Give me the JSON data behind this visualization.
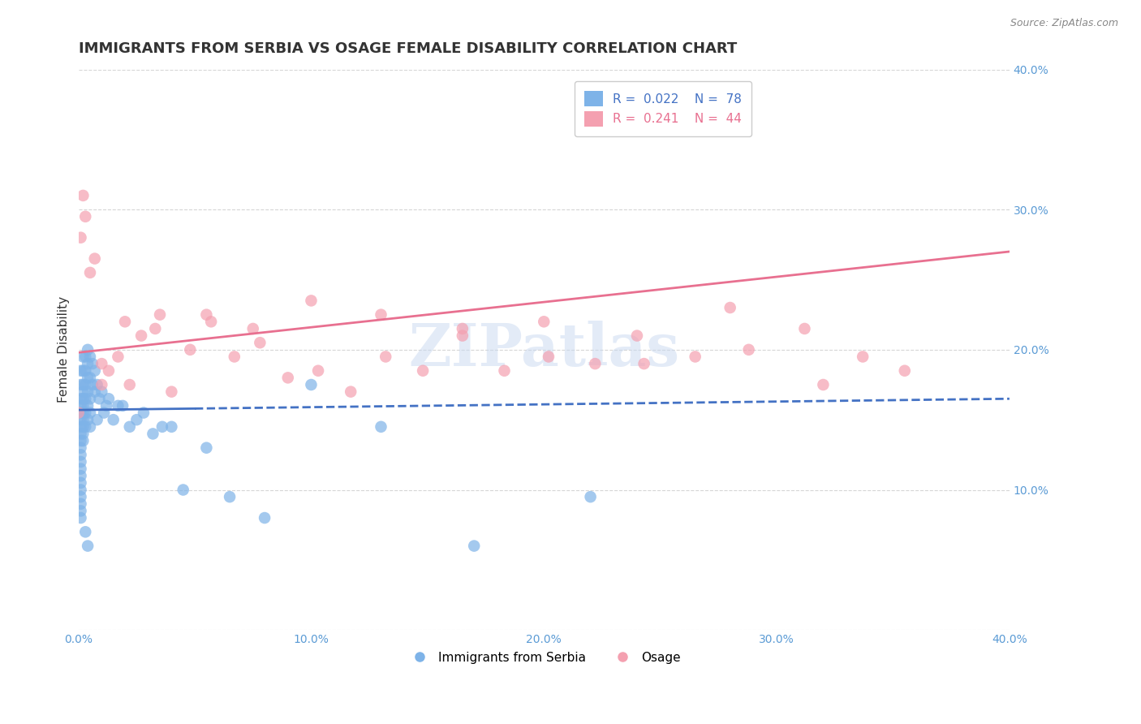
{
  "title": "IMMIGRANTS FROM SERBIA VS OSAGE FEMALE DISABILITY CORRELATION CHART",
  "source": "Source: ZipAtlas.com",
  "ylabel": "Female Disability",
  "xlim": [
    0.0,
    0.4
  ],
  "ylim": [
    0.0,
    0.4
  ],
  "xticks": [
    0.0,
    0.1,
    0.2,
    0.3,
    0.4
  ],
  "yticks": [
    0.0,
    0.1,
    0.2,
    0.3,
    0.4
  ],
  "xtick_labels": [
    "0.0%",
    "10.0%",
    "20.0%",
    "30.0%",
    "40.0%"
  ],
  "ytick_labels_right": [
    "",
    "10.0%",
    "20.0%",
    "30.0%",
    "40.0%"
  ],
  "blue_R": 0.022,
  "blue_N": 78,
  "pink_R": 0.241,
  "pink_N": 44,
  "blue_color": "#7EB3E8",
  "pink_color": "#F4A0B0",
  "blue_line_color": "#4472C4",
  "pink_line_color": "#E87090",
  "legend_label_blue": "Immigrants from Serbia",
  "legend_label_pink": "Osage",
  "watermark": "ZIPatlas",
  "blue_data_xlim": 0.05,
  "blue_scatter_x": [
    0.001,
    0.001,
    0.001,
    0.001,
    0.001,
    0.001,
    0.001,
    0.001,
    0.001,
    0.001,
    0.001,
    0.001,
    0.001,
    0.001,
    0.001,
    0.001,
    0.001,
    0.001,
    0.001,
    0.001,
    0.002,
    0.002,
    0.002,
    0.002,
    0.002,
    0.002,
    0.002,
    0.002,
    0.002,
    0.002,
    0.002,
    0.003,
    0.003,
    0.003,
    0.003,
    0.003,
    0.003,
    0.003,
    0.004,
    0.004,
    0.004,
    0.004,
    0.004,
    0.004,
    0.004,
    0.005,
    0.005,
    0.005,
    0.005,
    0.005,
    0.006,
    0.006,
    0.007,
    0.007,
    0.008,
    0.008,
    0.009,
    0.01,
    0.011,
    0.012,
    0.013,
    0.015,
    0.017,
    0.019,
    0.022,
    0.025,
    0.028,
    0.032,
    0.036,
    0.04,
    0.045,
    0.055,
    0.065,
    0.08,
    0.1,
    0.13,
    0.17,
    0.22
  ],
  "blue_scatter_y": [
    0.185,
    0.175,
    0.165,
    0.16,
    0.155,
    0.15,
    0.145,
    0.14,
    0.135,
    0.13,
    0.125,
    0.12,
    0.115,
    0.11,
    0.105,
    0.1,
    0.095,
    0.09,
    0.085,
    0.08,
    0.195,
    0.185,
    0.175,
    0.17,
    0.165,
    0.16,
    0.155,
    0.15,
    0.145,
    0.14,
    0.135,
    0.195,
    0.185,
    0.175,
    0.165,
    0.155,
    0.145,
    0.07,
    0.2,
    0.19,
    0.18,
    0.17,
    0.16,
    0.15,
    0.06,
    0.195,
    0.18,
    0.165,
    0.155,
    0.145,
    0.19,
    0.175,
    0.185,
    0.17,
    0.175,
    0.15,
    0.165,
    0.17,
    0.155,
    0.16,
    0.165,
    0.15,
    0.16,
    0.16,
    0.145,
    0.15,
    0.155,
    0.14,
    0.145,
    0.145,
    0.1,
    0.13,
    0.095,
    0.08,
    0.175,
    0.145,
    0.06,
    0.095
  ],
  "pink_scatter_x": [
    0.001,
    0.002,
    0.003,
    0.005,
    0.007,
    0.01,
    0.013,
    0.017,
    0.022,
    0.027,
    0.033,
    0.04,
    0.048,
    0.057,
    0.067,
    0.078,
    0.09,
    0.103,
    0.117,
    0.132,
    0.148,
    0.165,
    0.183,
    0.202,
    0.222,
    0.243,
    0.265,
    0.288,
    0.312,
    0.337,
    0.01,
    0.02,
    0.035,
    0.055,
    0.075,
    0.1,
    0.13,
    0.165,
    0.2,
    0.24,
    0.28,
    0.32,
    0.355,
    0.0
  ],
  "pink_scatter_y": [
    0.28,
    0.31,
    0.295,
    0.255,
    0.265,
    0.175,
    0.185,
    0.195,
    0.175,
    0.21,
    0.215,
    0.17,
    0.2,
    0.22,
    0.195,
    0.205,
    0.18,
    0.185,
    0.17,
    0.195,
    0.185,
    0.21,
    0.185,
    0.195,
    0.19,
    0.19,
    0.195,
    0.2,
    0.215,
    0.195,
    0.19,
    0.22,
    0.225,
    0.225,
    0.215,
    0.235,
    0.225,
    0.215,
    0.22,
    0.21,
    0.23,
    0.175,
    0.185,
    0.155
  ],
  "background_color": "#ffffff",
  "grid_color": "#cccccc",
  "title_color": "#333333",
  "axis_color": "#5B9BD5",
  "title_fontsize": 13,
  "label_fontsize": 11,
  "tick_fontsize": 10,
  "legend_fontsize": 11
}
